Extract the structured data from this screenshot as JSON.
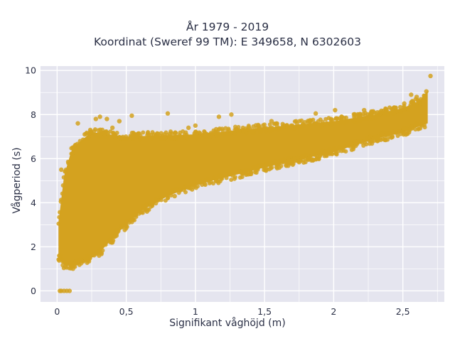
{
  "chart_data": {
    "type": "scatter",
    "title": [
      "År 1979 - 2019",
      "Koordinat (Sweref 99 TM): E 349658, N 6302603"
    ],
    "xlabel": "Signifikant våghöjd (m)",
    "ylabel": "Vågperiod (s)",
    "xlim": [
      -0.12,
      2.8
    ],
    "ylim": [
      -0.5,
      10.2
    ],
    "xticks": [
      0,
      0.5,
      1,
      1.5,
      2,
      2.5
    ],
    "xtick_labels": [
      "0",
      "0,5",
      "1",
      "1,5",
      "2",
      "2,5"
    ],
    "yticks": [
      0,
      2,
      4,
      6,
      8,
      10
    ],
    "ytick_labels": [
      "0",
      "2",
      "4",
      "6",
      "8",
      "10"
    ],
    "grid": true,
    "plot_bg": "#e5e5ef",
    "grid_color": "#ffffff",
    "marker_color": "#d4a21f",
    "series": [
      {
        "envelope_upper": [
          [
            0.01,
            3.1
          ],
          [
            0.05,
            5.2
          ],
          [
            0.1,
            6.3
          ],
          [
            0.15,
            6.7
          ],
          [
            0.25,
            7.2
          ],
          [
            0.5,
            7.0
          ],
          [
            1.0,
            7.1
          ],
          [
            1.5,
            7.4
          ],
          [
            2.0,
            7.7
          ],
          [
            2.3,
            8.0
          ],
          [
            2.5,
            8.3
          ],
          [
            2.62,
            8.6
          ],
          [
            2.68,
            9.1
          ]
        ],
        "envelope_lower": [
          [
            0.01,
            1.5
          ],
          [
            0.05,
            1.2
          ],
          [
            0.1,
            1.1
          ],
          [
            0.2,
            1.3
          ],
          [
            0.3,
            1.7
          ],
          [
            0.45,
            2.7
          ],
          [
            0.6,
            3.6
          ],
          [
            0.8,
            4.3
          ],
          [
            1.0,
            4.8
          ],
          [
            1.5,
            5.6
          ],
          [
            2.0,
            6.3
          ],
          [
            2.3,
            6.9
          ],
          [
            2.5,
            7.2
          ],
          [
            2.68,
            7.6
          ]
        ],
        "points": [
          [
            0.02,
            0
          ],
          [
            0.03,
            0
          ],
          [
            0.05,
            0
          ],
          [
            0.07,
            0
          ],
          [
            0.09,
            0
          ],
          [
            0.03,
            5.5
          ],
          [
            0.15,
            7.6
          ],
          [
            0.28,
            7.8
          ],
          [
            0.31,
            7.9
          ],
          [
            0.36,
            7.8
          ],
          [
            0.4,
            7.4
          ],
          [
            0.45,
            7.7
          ],
          [
            0.54,
            7.95
          ],
          [
            0.8,
            8.05
          ],
          [
            0.95,
            7.4
          ],
          [
            1.0,
            7.5
          ],
          [
            1.17,
            7.9
          ],
          [
            1.26,
            8.0
          ],
          [
            1.55,
            7.7
          ],
          [
            1.87,
            8.05
          ],
          [
            2.01,
            8.2
          ],
          [
            2.22,
            8.2
          ],
          [
            2.35,
            8.1
          ],
          [
            2.51,
            8.5
          ],
          [
            2.6,
            8.8
          ],
          [
            2.67,
            9.05
          ],
          [
            2.7,
            9.75
          ],
          [
            2.56,
            8.9
          ],
          [
            0.12,
            6.4
          ],
          [
            0.2,
            7.1
          ],
          [
            0.24,
            7.3
          ],
          [
            0.5,
            6.9
          ],
          [
            0.7,
            7.1
          ],
          [
            1.3,
            7.3
          ],
          [
            1.7,
            7.5
          ],
          [
            1.95,
            7.6
          ],
          [
            0.16,
            1.4
          ],
          [
            0.22,
            1.6
          ],
          [
            0.35,
            2.1
          ],
          [
            0.4,
            2.2
          ],
          [
            0.38,
            2.3
          ],
          [
            0.1,
            1.2
          ],
          [
            0.06,
            1.1
          ],
          [
            0.02,
            1.6
          ],
          [
            0.52,
            3.1
          ],
          [
            0.65,
            3.6
          ],
          [
            0.85,
            4.3
          ],
          [
            1.15,
            5.0
          ],
          [
            1.4,
            5.4
          ],
          [
            1.75,
            5.9
          ],
          [
            2.1,
            6.6
          ],
          [
            2.4,
            7.0
          ]
        ]
      }
    ]
  }
}
